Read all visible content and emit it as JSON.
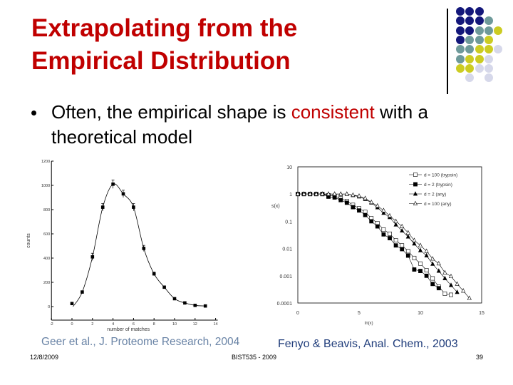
{
  "slide": {
    "title_line1": "Extrapolating from the",
    "title_line2": "Empirical Distribution",
    "bullet": {
      "before": "Often, the empirical shape is ",
      "highlight": "consistent",
      "after": " with a theoretical model"
    },
    "captions": {
      "left": "Geer et al., J. Proteome Research, 2004",
      "right": "Fenyo & Beavis, Anal. Chem., 2003"
    },
    "footer": {
      "date": "12/8/2009",
      "course": "BIST535 - 2009",
      "page": "39"
    },
    "colors": {
      "title": "#c00000",
      "highlight": "#c00000",
      "navy": "#13177a",
      "teal": "#6e9a9a",
      "olive": "#cccc22",
      "lavender": "#d6d8ea"
    },
    "decoration_dots": [
      [
        "navy",
        "navy",
        "navy",
        "",
        ""
      ],
      [
        "navy",
        "navy",
        "navy",
        "teal",
        ""
      ],
      [
        "navy",
        "navy",
        "teal",
        "teal",
        "olive"
      ],
      [
        "navy",
        "teal",
        "teal",
        "olive",
        ""
      ],
      [
        "teal",
        "teal",
        "olive",
        "olive",
        "lavender"
      ],
      [
        "teal",
        "olive",
        "olive",
        "lavender",
        ""
      ],
      [
        "olive",
        "olive",
        "lavender",
        "lavender",
        ""
      ],
      [
        "",
        "lavender",
        "",
        "lavender",
        ""
      ]
    ]
  },
  "chart_data": [
    {
      "type": "scatter",
      "xlabel": "number of matches",
      "ylabel": "counts",
      "xlim": [
        -2,
        14
      ],
      "ylim": [
        -100,
        1200
      ],
      "xticks": [
        "-2",
        "0",
        "2",
        "4",
        "6",
        "8",
        "10",
        "12",
        "14"
      ],
      "yticks": [
        "0",
        "200",
        "400",
        "600",
        "800",
        "1000",
        "1200"
      ],
      "grid": false,
      "fit_curve": true,
      "x": [
        0,
        1,
        2,
        3,
        4,
        5,
        6,
        7,
        8,
        9,
        10,
        11,
        12,
        13
      ],
      "y": [
        25,
        120,
        410,
        820,
        1010,
        930,
        820,
        480,
        270,
        160,
        65,
        30,
        10,
        5
      ],
      "errors": [
        0,
        0,
        30,
        30,
        35,
        30,
        30,
        25,
        15,
        10,
        0,
        0,
        0,
        0
      ]
    },
    {
      "type": "line",
      "xlabel": "ln(x)",
      "ylabel": "s(x)",
      "xlim": [
        0,
        15
      ],
      "ylim": [
        0.0001,
        10
      ],
      "yscale": "log",
      "xticks": [
        "0",
        "5",
        "10",
        "15"
      ],
      "yticks": [
        "10",
        "1",
        "0.1",
        "0.01",
        "0.001",
        "0.0001"
      ],
      "grid": false,
      "legend": "top-right",
      "series": [
        {
          "name": "d = 100 (trypsin)",
          "marker": "open-square",
          "x": [
            0,
            0.5,
            1,
            1.5,
            2,
            2.5,
            3,
            3.5,
            4,
            4.5,
            5,
            5.5,
            6,
            6.5,
            7,
            7.5,
            8,
            8.5,
            9,
            9.5,
            10,
            10.5,
            11,
            11.5,
            12,
            12.5
          ],
          "y": [
            1,
            1,
            1,
            1,
            1,
            0.9,
            0.85,
            0.7,
            0.55,
            0.4,
            0.3,
            0.22,
            0.13,
            0.085,
            0.05,
            0.035,
            0.02,
            0.013,
            0.008,
            0.0045,
            0.0028,
            0.0016,
            0.0008,
            0.0004,
            0.00022,
            0.0002
          ]
        },
        {
          "name": "d = 2 (trypsin)",
          "marker": "filled-square",
          "x": [
            0,
            0.5,
            1,
            1.5,
            2,
            2.5,
            3,
            3.5,
            4,
            4.5,
            5,
            5.5,
            6,
            6.5,
            7,
            7.5,
            8,
            8.5,
            9,
            9.5,
            10,
            10.5,
            11,
            11.5
          ],
          "y": [
            1,
            1,
            1,
            1,
            1,
            0.8,
            0.75,
            0.6,
            0.48,
            0.33,
            0.25,
            0.17,
            0.1,
            0.065,
            0.033,
            0.024,
            0.013,
            0.0095,
            0.0055,
            0.0017,
            0.0015,
            0.001,
            0.0005,
            0.00035
          ]
        },
        {
          "name": "d = 2 (any)",
          "marker": "filled-triangle",
          "x": [
            0,
            0.5,
            1,
            1.5,
            2,
            2.5,
            3,
            3.5,
            4,
            4.5,
            5,
            5.5,
            6,
            6.5,
            7,
            7.5,
            8,
            8.5,
            9,
            9.5,
            10,
            10.5,
            11,
            11.5,
            12,
            12.5,
            13
          ],
          "y": [
            1,
            1,
            1,
            1,
            1,
            1,
            1,
            1,
            1,
            0.9,
            0.8,
            0.65,
            0.48,
            0.32,
            0.2,
            0.14,
            0.075,
            0.045,
            0.027,
            0.015,
            0.0085,
            0.0055,
            0.0027,
            0.0015,
            0.0008,
            0.00045,
            0.00025
          ]
        },
        {
          "name": "d = 100 (any)",
          "marker": "open-triangle",
          "x": [
            0,
            0.5,
            1,
            1.5,
            2,
            2.5,
            3,
            3.5,
            4,
            4.5,
            5,
            5.5,
            6,
            6.5,
            7,
            7.5,
            8,
            8.5,
            9,
            9.5,
            10,
            10.5,
            11,
            11.5,
            12,
            12.5,
            13,
            13.5,
            14
          ],
          "y": [
            1,
            1,
            1,
            1,
            1,
            1,
            1,
            1,
            1,
            0.92,
            0.85,
            0.7,
            0.5,
            0.37,
            0.25,
            0.16,
            0.1,
            0.065,
            0.038,
            0.02,
            0.013,
            0.008,
            0.0042,
            0.0028,
            0.0013,
            0.00095,
            0.0005,
            0.00028,
            0.00015
          ]
        }
      ]
    }
  ]
}
